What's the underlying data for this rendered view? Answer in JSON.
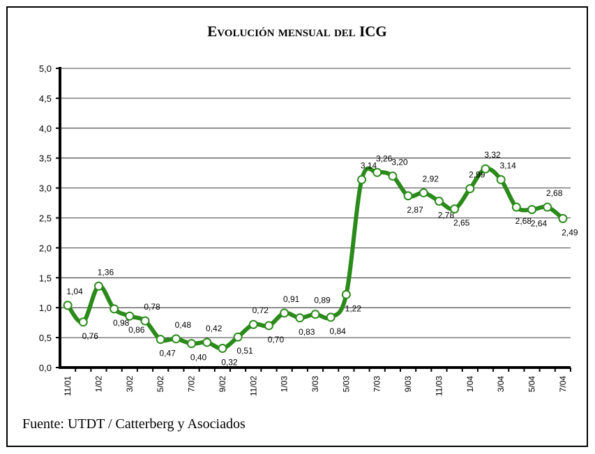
{
  "chart_data": {
    "type": "line",
    "title": "Evolución mensual del ICG",
    "source": "Fuente: UTDT / Catterberg y Asociados",
    "categories": [
      "11/01",
      null,
      "1/02",
      null,
      "3/02",
      null,
      "5/02",
      null,
      "7/02",
      null,
      "9/02",
      null,
      "11/02",
      null,
      "1/03",
      null,
      "3/03",
      null,
      "5/03",
      null,
      "7/03",
      null,
      "9/03",
      null,
      "11/03",
      null,
      "1/04",
      null,
      "3/04",
      null,
      "5/04",
      null,
      "7/04"
    ],
    "values": [
      1.04,
      0.76,
      1.36,
      0.98,
      0.86,
      0.78,
      0.47,
      0.48,
      0.4,
      0.42,
      0.32,
      0.51,
      0.72,
      0.7,
      0.91,
      0.83,
      0.89,
      0.84,
      1.22,
      3.14,
      3.26,
      3.2,
      2.87,
      2.92,
      2.78,
      2.65,
      2.99,
      3.32,
      3.14,
      2.68,
      2.64,
      2.68,
      2.49
    ],
    "value_labels": [
      "1,04",
      "0,76",
      "1,36",
      "0,98",
      "0,86",
      "0,78",
      "0,47",
      "0,48",
      "0,40",
      "0,42",
      "0,32",
      "0,51",
      "0,72",
      "0,70",
      "0,91",
      "0,83",
      "0,89",
      "0,84",
      "1,22",
      "3,14",
      "3,26",
      "3,20",
      "2,87",
      "2,92",
      "2,78",
      "2,65",
      "2,99",
      "3,32",
      "3,14",
      "2,68",
      "2,64",
      "2,68",
      "2,49"
    ],
    "color": "#2a8a1a",
    "ylim": [
      0,
      5
    ],
    "yticks": [
      {
        "value": 0,
        "label": "0,0"
      },
      {
        "value": 0.5,
        "label": "0,5"
      },
      {
        "value": 1,
        "label": "1,0"
      },
      {
        "value": 1.5,
        "label": "1,5"
      },
      {
        "value": 2,
        "label": "2,0"
      },
      {
        "value": 2.5,
        "label": "2,5"
      },
      {
        "value": 3,
        "label": "3,0"
      },
      {
        "value": 3.5,
        "label": "3,5"
      },
      {
        "value": 4,
        "label": "4,0"
      },
      {
        "value": 4.5,
        "label": "4,5"
      },
      {
        "value": 5,
        "label": "5,0"
      }
    ],
    "grid": true
  }
}
